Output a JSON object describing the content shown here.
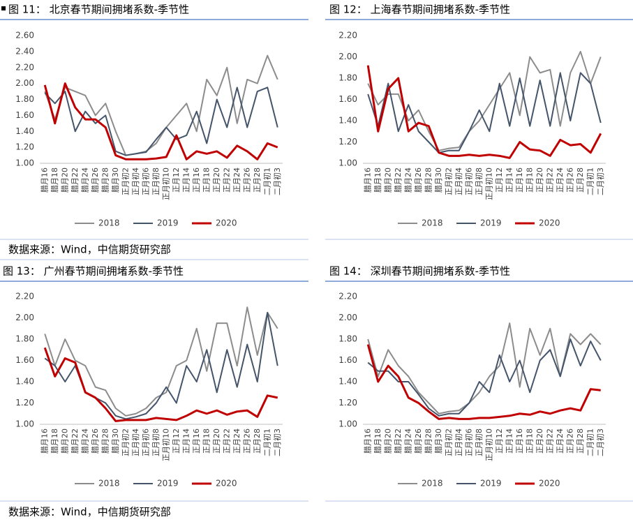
{
  "sources": [
    "数据来源：Wind，中信期货研究部",
    "数据来源：Wind，中信期货研究部"
  ],
  "chart_data": [
    {
      "type": "line",
      "title": "图 11：  北京春节期间拥堵系数-季节性",
      "categories": [
        "腊月16",
        "腊月18",
        "腊月20",
        "腊月22",
        "腊月24",
        "腊月26",
        "腊月28",
        "腊月30",
        "正月初2",
        "正月初4",
        "正月初6",
        "正月初8",
        "正月初10",
        "正月12",
        "正月14",
        "正月16",
        "正月18",
        "正月20",
        "正月22",
        "正月24",
        "正月26",
        "正月28",
        "二月初1",
        "二月初3"
      ],
      "ylim": [
        1.0,
        2.6
      ],
      "yticks": [
        {
          "value": 1.0,
          "label": "1.00"
        },
        {
          "value": 1.2,
          "label": "1.20"
        },
        {
          "value": 1.4,
          "label": "1.40"
        },
        {
          "value": 1.6,
          "label": "1.60"
        },
        {
          "value": 1.8,
          "label": "1.80"
        },
        {
          "value": 2.0,
          "label": "2.00"
        },
        {
          "value": 2.2,
          "label": "2.20"
        },
        {
          "value": 2.4,
          "label": "2.40"
        },
        {
          "value": 2.6,
          "label": "2.60"
        }
      ],
      "series": [
        {
          "name": "2018",
          "color": "#8c8c8c",
          "values": [
            1.9,
            1.55,
            1.95,
            1.9,
            1.85,
            1.6,
            1.75,
            1.4,
            1.1,
            1.12,
            1.15,
            1.25,
            1.45,
            1.6,
            1.75,
            1.4,
            2.05,
            1.85,
            2.2,
            1.5,
            2.05,
            2.0,
            2.35,
            2.05
          ]
        },
        {
          "name": "2019",
          "color": "#44546a",
          "values": [
            1.88,
            1.75,
            1.9,
            1.4,
            1.65,
            1.5,
            1.6,
            1.15,
            1.1,
            1.12,
            1.14,
            1.3,
            1.45,
            1.3,
            1.35,
            1.65,
            1.25,
            1.8,
            1.45,
            1.95,
            1.45,
            1.9,
            1.95,
            1.45
          ]
        },
        {
          "name": "2020",
          "color": "#c00000",
          "values": [
            1.98,
            1.5,
            2.0,
            1.7,
            1.55,
            1.55,
            1.45,
            1.1,
            1.05,
            1.05,
            1.05,
            1.06,
            1.08,
            1.35,
            1.05,
            1.15,
            1.12,
            1.15,
            1.07,
            1.22,
            1.15,
            1.05,
            1.25,
            1.2
          ]
        }
      ]
    },
    {
      "type": "line",
      "title": "图 12：  上海春节期间拥堵系数-季节性",
      "categories": [
        "腊月16",
        "腊月18",
        "腊月20",
        "腊月22",
        "腊月24",
        "腊月26",
        "腊月28",
        "腊月30",
        "正月初2",
        "正月初4",
        "正月初6",
        "正月初8",
        "正月初10",
        "正月12",
        "正月14",
        "正月16",
        "正月18",
        "正月20",
        "正月22",
        "正月24",
        "正月26",
        "正月28",
        "二月初1",
        "二月初3"
      ],
      "ylim": [
        1.0,
        2.2
      ],
      "yticks": [
        {
          "value": 1.0,
          "label": "1.00"
        },
        {
          "value": 1.2,
          "label": "1.20"
        },
        {
          "value": 1.4,
          "label": "1.40"
        },
        {
          "value": 1.6,
          "label": "1.60"
        },
        {
          "value": 1.8,
          "label": "1.80"
        },
        {
          "value": 2.0,
          "label": "2.00"
        },
        {
          "value": 2.2,
          "label": "2.20"
        }
      ],
      "series": [
        {
          "name": "2018",
          "color": "#8c8c8c",
          "values": [
            1.75,
            1.55,
            1.65,
            1.65,
            1.4,
            1.5,
            1.3,
            1.12,
            1.14,
            1.15,
            1.3,
            1.4,
            1.55,
            1.7,
            1.85,
            1.45,
            2.0,
            1.85,
            1.88,
            1.35,
            1.85,
            2.05,
            1.75,
            2.0
          ]
        },
        {
          "name": "2019",
          "color": "#44546a",
          "values": [
            1.65,
            1.35,
            1.75,
            1.3,
            1.55,
            1.3,
            1.2,
            1.1,
            1.12,
            1.12,
            1.3,
            1.5,
            1.3,
            1.75,
            1.35,
            1.8,
            1.35,
            1.78,
            1.35,
            1.85,
            1.4,
            1.85,
            1.75,
            1.38
          ]
        },
        {
          "name": "2020",
          "color": "#c00000",
          "values": [
            1.92,
            1.3,
            1.7,
            1.8,
            1.3,
            1.38,
            1.35,
            1.1,
            1.07,
            1.07,
            1.08,
            1.07,
            1.08,
            1.07,
            1.05,
            1.2,
            1.13,
            1.12,
            1.07,
            1.22,
            1.17,
            1.18,
            1.1,
            1.28
          ]
        }
      ]
    },
    {
      "type": "line",
      "title": "图 13：    广州春节期间拥堵系数-季节性",
      "categories": [
        "腊月16",
        "腊月18",
        "腊月20",
        "腊月22",
        "腊月24",
        "腊月26",
        "腊月28",
        "腊月30",
        "正月初2",
        "正月初4",
        "正月初6",
        "正月初8",
        "正月初10",
        "正月12",
        "正月14",
        "正月16",
        "正月18",
        "正月20",
        "正月22",
        "正月24",
        "正月26",
        "正月28",
        "二月初1",
        "二月初3"
      ],
      "ylim": [
        1.0,
        2.2
      ],
      "yticks": [
        {
          "value": 1.0,
          "label": "1.00"
        },
        {
          "value": 1.2,
          "label": "1.20"
        },
        {
          "value": 1.4,
          "label": "1.40"
        },
        {
          "value": 1.6,
          "label": "1.60"
        },
        {
          "value": 1.8,
          "label": "1.80"
        },
        {
          "value": 2.0,
          "label": "2.00"
        },
        {
          "value": 2.2,
          "label": "2.20"
        }
      ],
      "series": [
        {
          "name": "2018",
          "color": "#8c8c8c",
          "values": [
            1.85,
            1.55,
            1.8,
            1.6,
            1.55,
            1.35,
            1.32,
            1.15,
            1.08,
            1.1,
            1.15,
            1.25,
            1.3,
            1.55,
            1.6,
            1.9,
            1.5,
            1.95,
            1.95,
            1.55,
            2.1,
            1.65,
            2.05,
            1.9
          ]
        },
        {
          "name": "2019",
          "color": "#44546a",
          "values": [
            1.62,
            1.55,
            1.4,
            1.55,
            1.3,
            1.25,
            1.2,
            1.08,
            1.05,
            1.07,
            1.1,
            1.2,
            1.35,
            1.2,
            1.55,
            1.4,
            1.7,
            1.3,
            1.7,
            1.35,
            1.75,
            1.4,
            2.05,
            1.55
          ]
        },
        {
          "name": "2020",
          "color": "#c00000",
          "values": [
            1.72,
            1.45,
            1.62,
            1.58,
            1.3,
            1.25,
            1.15,
            1.03,
            1.04,
            1.04,
            1.04,
            1.06,
            1.05,
            1.04,
            1.08,
            1.13,
            1.1,
            1.13,
            1.09,
            1.12,
            1.13,
            1.07,
            1.27,
            1.25
          ]
        }
      ]
    },
    {
      "type": "line",
      "title": "图 14：    深圳春节期间拥堵系数-季节性",
      "categories": [
        "腊月16",
        "腊月18",
        "腊月20",
        "腊月22",
        "腊月24",
        "腊月26",
        "腊月28",
        "腊月30",
        "正月初2",
        "正月初4",
        "正月初6",
        "正月初8",
        "正月初10",
        "正月12",
        "正月14",
        "正月16",
        "正月18",
        "正月20",
        "正月22",
        "正月24",
        "正月26",
        "正月28",
        "二月初1",
        "二月初3"
      ],
      "ylim": [
        1.0,
        2.2
      ],
      "yticks": [
        {
          "value": 1.0,
          "label": "1.00"
        },
        {
          "value": 1.2,
          "label": "1.20"
        },
        {
          "value": 1.4,
          "label": "1.40"
        },
        {
          "value": 1.6,
          "label": "1.60"
        },
        {
          "value": 1.8,
          "label": "1.80"
        },
        {
          "value": 2.0,
          "label": "2.00"
        },
        {
          "value": 2.2,
          "label": "2.20"
        }
      ],
      "series": [
        {
          "name": "2018",
          "color": "#8c8c8c",
          "values": [
            1.8,
            1.45,
            1.7,
            1.55,
            1.45,
            1.3,
            1.2,
            1.1,
            1.12,
            1.13,
            1.2,
            1.3,
            1.45,
            1.55,
            1.95,
            1.35,
            1.9,
            1.65,
            1.9,
            1.45,
            1.85,
            1.75,
            1.85,
            1.75
          ]
        },
        {
          "name": "2019",
          "color": "#44546a",
          "values": [
            1.58,
            1.5,
            1.5,
            1.4,
            1.4,
            1.28,
            1.15,
            1.08,
            1.1,
            1.1,
            1.2,
            1.4,
            1.3,
            1.65,
            1.4,
            1.6,
            1.3,
            1.6,
            1.7,
            1.45,
            1.8,
            1.55,
            1.78,
            1.6
          ]
        },
        {
          "name": "2020",
          "color": "#c00000",
          "values": [
            1.75,
            1.4,
            1.55,
            1.45,
            1.25,
            1.2,
            1.12,
            1.05,
            1.06,
            1.05,
            1.05,
            1.06,
            1.06,
            1.07,
            1.08,
            1.1,
            1.09,
            1.12,
            1.1,
            1.13,
            1.15,
            1.13,
            1.33,
            1.32
          ]
        }
      ]
    }
  ]
}
